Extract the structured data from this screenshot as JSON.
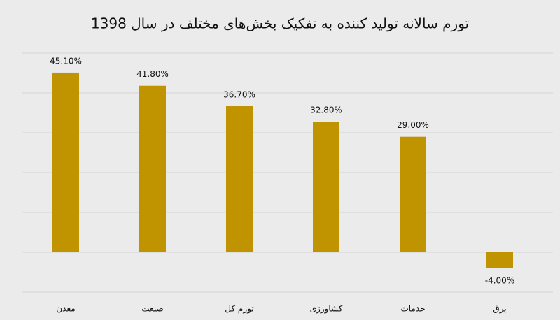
{
  "chart_data": {
    "type": "bar",
    "title": "تورم سالانه تولید کننده به تفکیک بخش‌های مختلف در سال 1398",
    "categories": [
      "معدن",
      "صنعت",
      "تورم کل",
      "کشاورزی",
      "خدمات",
      "برق"
    ],
    "values": [
      45.1,
      41.8,
      36.7,
      32.8,
      29.0,
      -4.0
    ],
    "value_labels": [
      "45.10%",
      "41.80%",
      "36.70%",
      "32.80%",
      "29.00%",
      "-4.00%"
    ],
    "color": "#c09400",
    "ylim": [
      -10,
      50
    ],
    "yticks": [
      -10,
      0,
      10,
      20,
      30,
      40,
      50
    ],
    "grid": true
  }
}
